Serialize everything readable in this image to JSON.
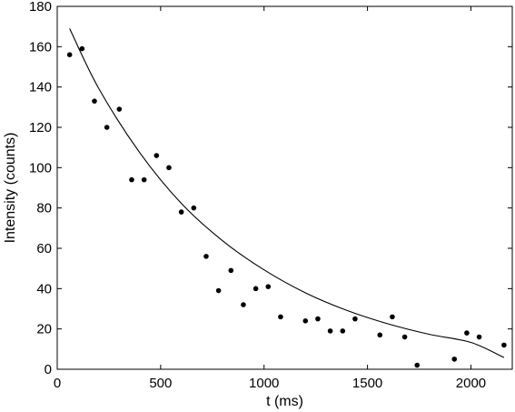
{
  "chart_data": {
    "type": "scatter",
    "title": "",
    "xlabel": "t (ms)",
    "ylabel": "Intensity (counts)",
    "xlim": [
      0,
      2200
    ],
    "ylim": [
      0,
      180
    ],
    "xticks": [
      0,
      500,
      1000,
      1500,
      2000
    ],
    "yticks": [
      0,
      20,
      40,
      60,
      80,
      100,
      120,
      140,
      160,
      180
    ],
    "grid": false,
    "legend": "none",
    "colors": {
      "points": "#000000",
      "fit": "#000000",
      "axes": "#000000"
    },
    "series": [
      {
        "kind": "points",
        "x": [
          60,
          120,
          180,
          240,
          300,
          360,
          420,
          480,
          540,
          600,
          660,
          720,
          780,
          840,
          900,
          960,
          1020,
          1080,
          1200,
          1260,
          1320,
          1380,
          1440,
          1560,
          1620,
          1680,
          1740,
          1920,
          1980,
          2040,
          2160
        ],
        "y": [
          156,
          159,
          133,
          120,
          129,
          94,
          94,
          106,
          100,
          78,
          80,
          56,
          39,
          49,
          32,
          40,
          41,
          26,
          24,
          25,
          19,
          19,
          25,
          17,
          26,
          16,
          2,
          5,
          18,
          16,
          12
        ]
      },
      {
        "kind": "fit-line",
        "x": [
          60,
          200,
          400,
          600,
          800,
          1000,
          1200,
          1400,
          1600,
          1800,
          2000,
          2160
        ],
        "y": [
          169,
          139.4,
          107.3,
          82.3,
          63.7,
          49.3,
          37.9,
          29.2,
          22.5,
          17.3,
          13.3,
          5.8
        ]
      }
    ]
  }
}
